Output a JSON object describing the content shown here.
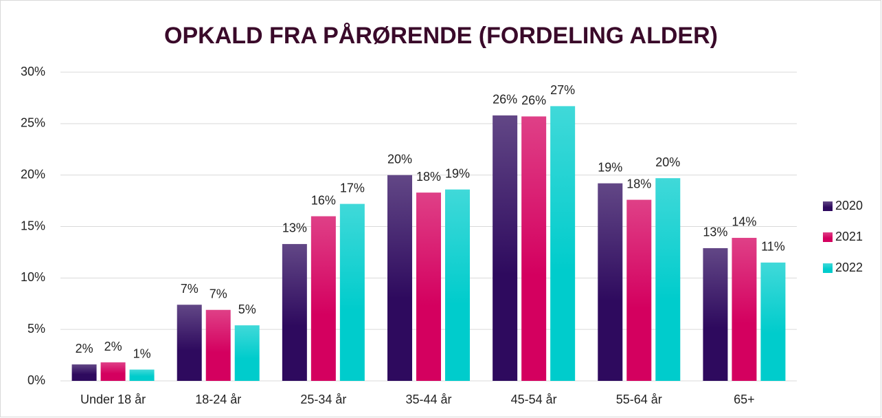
{
  "chart_data": {
    "type": "bar",
    "title": "OPKALD FRA PÅRØRENDE (FORDELING ALDER)",
    "categories": [
      "Under 18 år",
      "18-24 år",
      "25-34 år",
      "35-44 år",
      "45-54 år",
      "55-64 år",
      "65+"
    ],
    "series": [
      {
        "name": "2020",
        "color": "#2e0a5e",
        "values": [
          1.6,
          7.4,
          13.3,
          20.0,
          25.8,
          19.2,
          12.9
        ],
        "value_labels": [
          "2%",
          "7%",
          "13%",
          "20%",
          "26%",
          "19%",
          "13%"
        ]
      },
      {
        "name": "2021",
        "color": "#d4005f",
        "values": [
          1.8,
          6.9,
          16.0,
          18.3,
          25.7,
          17.6,
          13.9
        ],
        "value_labels": [
          "2%",
          "7%",
          "16%",
          "18%",
          "26%",
          "18%",
          "14%"
        ]
      },
      {
        "name": "2022",
        "color": "#00cccc",
        "values": [
          1.1,
          5.4,
          17.2,
          18.6,
          26.7,
          19.7,
          11.5
        ],
        "value_labels": [
          "1%",
          "5%",
          "17%",
          "19%",
          "27%",
          "20%",
          "11%"
        ]
      }
    ],
    "ylim": [
      0,
      30
    ],
    "yticks": [
      {
        "value": 0,
        "label": "0%"
      },
      {
        "value": 5,
        "label": "5%"
      },
      {
        "value": 10,
        "label": "10%"
      },
      {
        "value": 15,
        "label": "15%"
      },
      {
        "value": 20,
        "label": "20%"
      },
      {
        "value": 25,
        "label": "25%"
      },
      {
        "value": 30,
        "label": "30%"
      }
    ],
    "grid": true,
    "legend": "right"
  }
}
